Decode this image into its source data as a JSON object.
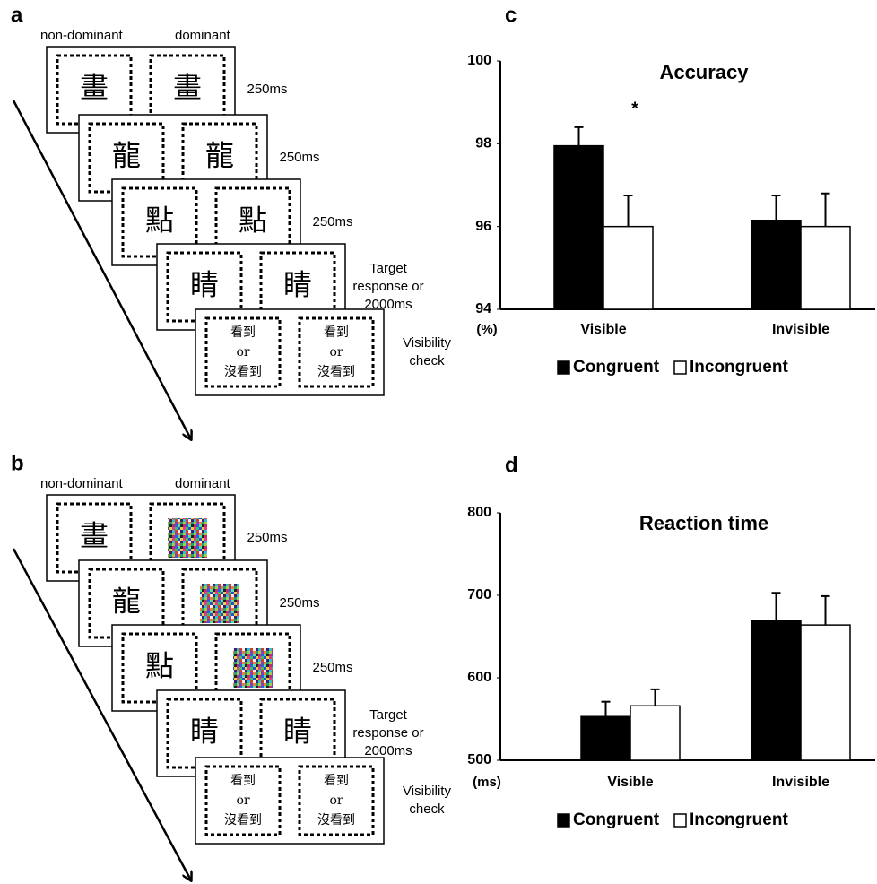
{
  "panels": [
    {
      "label": "a",
      "headers": [
        "non-dominant",
        "dominant"
      ],
      "frames": [
        {
          "left": "畫",
          "right": "畫",
          "duration": [
            "250ms"
          ]
        },
        {
          "left": "龍",
          "right": "龍",
          "duration": [
            "250ms"
          ]
        },
        {
          "left": "點",
          "right": "點",
          "duration": [
            "250ms"
          ]
        },
        {
          "left": "睛",
          "right": "睛",
          "duration": [
            "Target",
            "response or",
            "2000ms"
          ]
        },
        {
          "left": [
            "看到",
            "or",
            "沒看到"
          ],
          "right": [
            "看到",
            "or",
            "沒看到"
          ],
          "duration": [
            "Visibility",
            "check"
          ]
        }
      ]
    },
    {
      "label": "b",
      "headers": [
        "non-dominant",
        "dominant"
      ],
      "frames": [
        {
          "left": "畫",
          "duration": [
            "250ms"
          ]
        },
        {
          "left": "龍",
          "duration": [
            "250ms"
          ]
        },
        {
          "left": "點",
          "duration": [
            "250ms"
          ]
        },
        {
          "left": "睛",
          "right": "睛",
          "duration": [
            "Target",
            "response or",
            "2000ms"
          ]
        },
        {
          "left": [
            "看到",
            "or",
            "沒看到"
          ],
          "right": [
            "看到",
            "or",
            "沒看到"
          ],
          "duration": [
            "Visibility",
            "check"
          ]
        }
      ]
    }
  ],
  "chart_data": [
    {
      "type": "bar",
      "label": "c",
      "title": "Accuracy",
      "unit": "(%)",
      "annotation": "*",
      "categories": [
        "Visible",
        "Invisible"
      ],
      "series": [
        {
          "name": "Congruent",
          "color": "#000000",
          "values": [
            97.95,
            96.15
          ],
          "errors": [
            0.45,
            0.6
          ]
        },
        {
          "name": "Incongruent",
          "color": "#ffffff",
          "values": [
            96.0,
            96.0
          ],
          "errors": [
            0.75,
            0.8
          ]
        }
      ],
      "ylim": [
        94,
        100
      ],
      "yticks": [
        94,
        96,
        98,
        100
      ]
    },
    {
      "type": "bar",
      "label": "d",
      "title": "Reaction time",
      "unit": "(ms)",
      "categories": [
        "Visible",
        "Invisible"
      ],
      "series": [
        {
          "name": "Congruent",
          "color": "#000000",
          "values": [
            553,
            669
          ],
          "errors": [
            18,
            34
          ]
        },
        {
          "name": "Incongruent",
          "color": "#ffffff",
          "values": [
            566,
            664
          ],
          "errors": [
            20,
            35
          ]
        }
      ],
      "ylim": [
        500,
        800
      ],
      "yticks": [
        500,
        600,
        700,
        800
      ]
    }
  ]
}
